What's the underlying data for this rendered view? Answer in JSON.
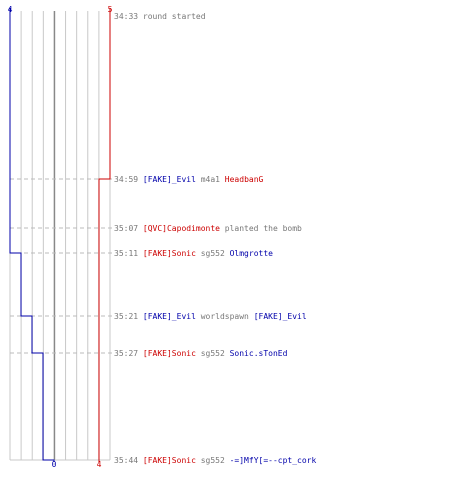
{
  "chart_data": {
    "type": "line",
    "team_blue_start": "4",
    "team_red_start": "5",
    "team_blue_end": "0",
    "team_red_end": "4",
    "colors": {
      "blue": "#0000aa",
      "red": "#cc0000",
      "gray": "#777777",
      "grid": "#c8c8c8",
      "dash": "#bbbbbb",
      "axis": "#888888"
    },
    "series": [
      {
        "team": "blue",
        "values": [
          4,
          4,
          4,
          3,
          2,
          1,
          0
        ]
      },
      {
        "team": "red",
        "values": [
          5,
          4,
          4,
          4,
          4,
          4,
          4
        ]
      }
    ],
    "events": [
      {
        "time": "34:33",
        "parts": [
          {
            "t": "round started",
            "c": "gray"
          }
        ]
      },
      {
        "time": "34:59",
        "parts": [
          {
            "t": "[FAKE]_Evil",
            "c": "blue"
          },
          {
            "t": " m4a1 ",
            "c": "gray"
          },
          {
            "t": "HeadbanG",
            "c": "red"
          }
        ]
      },
      {
        "time": "35:07",
        "parts": [
          {
            "t": "[QVC]Capodimonte",
            "c": "red"
          },
          {
            "t": " planted the bomb",
            "c": "gray"
          }
        ]
      },
      {
        "time": "35:11",
        "parts": [
          {
            "t": "[FAKE]Sonic",
            "c": "red"
          },
          {
            "t": " sg552 ",
            "c": "gray"
          },
          {
            "t": "Olmgrotte",
            "c": "blue"
          }
        ]
      },
      {
        "time": "35:21",
        "parts": [
          {
            "t": "[FAKE]_Evil",
            "c": "blue"
          },
          {
            "t": " worldspawn ",
            "c": "gray"
          },
          {
            "t": "[FAKE]_Evil",
            "c": "blue"
          }
        ]
      },
      {
        "time": "35:27",
        "parts": [
          {
            "t": "[FAKE]Sonic",
            "c": "red"
          },
          {
            "t": " sg552 ",
            "c": "gray"
          },
          {
            "t": "Sonic.sTonEd",
            "c": "blue"
          }
        ]
      },
      {
        "time": "35:44",
        "parts": [
          {
            "t": "[FAKE]Sonic",
            "c": "red"
          },
          {
            "t": " sg552 ",
            "c": "gray"
          },
          {
            "t": "-=]MfY[=--cpt_cork",
            "c": "blue"
          }
        ]
      }
    ]
  }
}
